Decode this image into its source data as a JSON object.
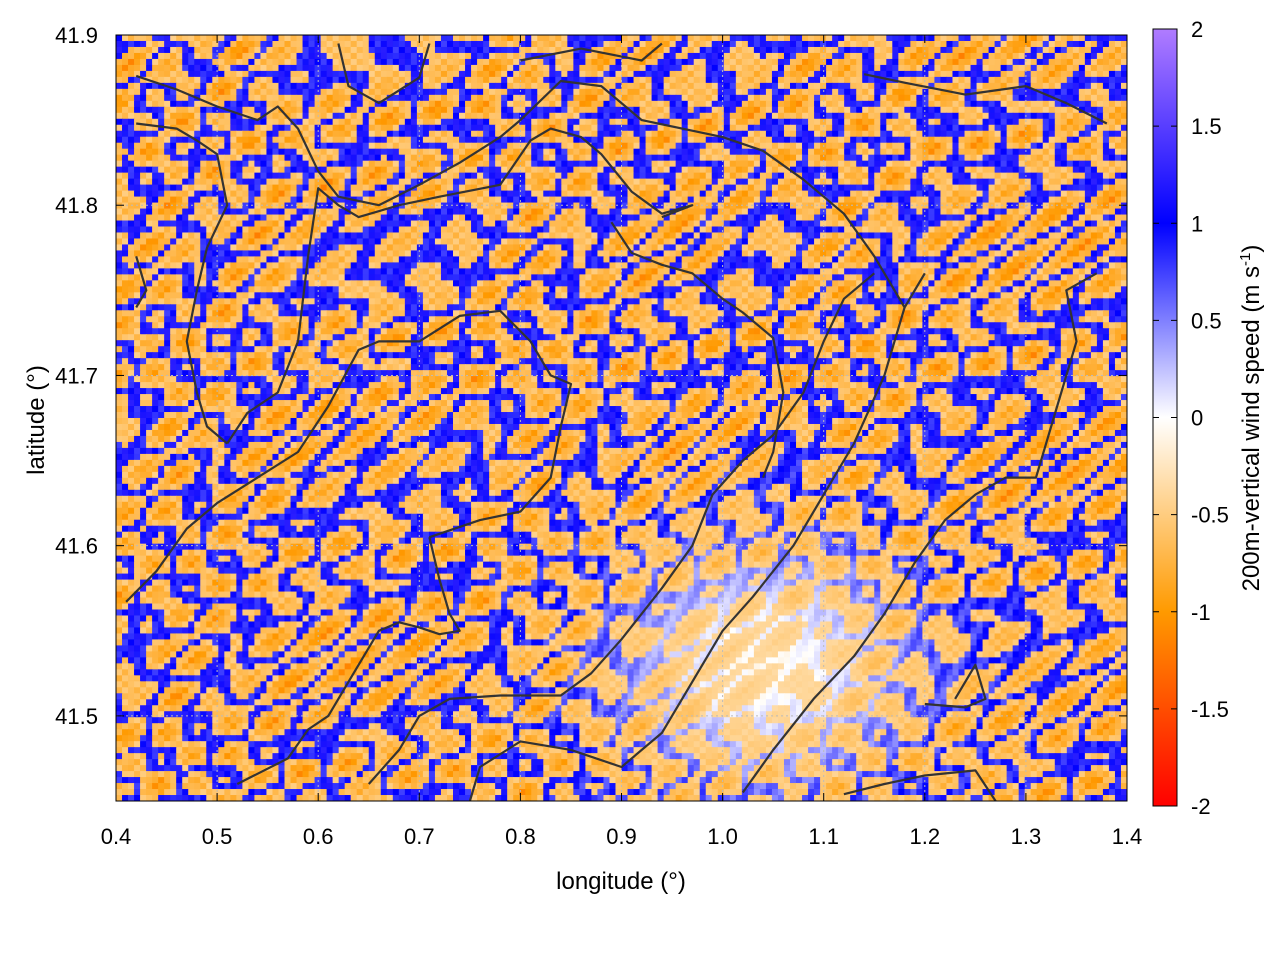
{
  "chart_data": {
    "type": "heatmap",
    "title": "",
    "xlabel": "longitude (°)",
    "ylabel": "latitude (°)",
    "colorbar_label": "200m-vertical wind speed (m s",
    "colorbar_label_sup": "-1",
    "colorbar_label_end": ")",
    "xlim": [
      0.4,
      1.4
    ],
    "ylim": [
      41.45,
      41.9
    ],
    "x_ticks": [
      0.4,
      0.5,
      0.6,
      0.7,
      0.8,
      0.9,
      1.0,
      1.1,
      1.2,
      1.3,
      1.4
    ],
    "x_tick_labels": [
      "0.4",
      "0.5",
      "0.6",
      "0.7",
      "0.8",
      "0.9",
      "1.0",
      "1.1",
      "1.2",
      "1.3",
      "1.4"
    ],
    "y_ticks": [
      41.5,
      41.6,
      41.7,
      41.8,
      41.9
    ],
    "y_tick_labels": [
      "41.5",
      "41.6",
      "41.7",
      "41.8",
      "41.9"
    ],
    "colorbar_range": [
      -2,
      2
    ],
    "colorbar_ticks": [
      2,
      1.5,
      1,
      0.5,
      0,
      -0.5,
      -1,
      -1.5,
      -2
    ],
    "colorbar_tick_labels": [
      "2",
      "1.5",
      "1",
      "0.5",
      "0",
      "-0.5",
      "-1",
      "-1.5",
      "-2"
    ],
    "colormap": [
      "#ff0000",
      "#ff9a00",
      "#ffffff",
      "#0000ff",
      "#b07cff"
    ],
    "grid": true,
    "boundaries": [
      [
        [
          0.42,
          41.876
        ],
        [
          0.46,
          41.868
        ],
        [
          0.5,
          41.858
        ],
        [
          0.54,
          41.85
        ],
        [
          0.56,
          41.858
        ],
        [
          0.58,
          41.845
        ],
        [
          0.6,
          41.82
        ],
        [
          0.62,
          41.805
        ],
        [
          0.66,
          41.8
        ],
        [
          0.7,
          41.812
        ],
        [
          0.74,
          41.825
        ],
        [
          0.78,
          41.84
        ],
        [
          0.8,
          41.85
        ],
        [
          0.84,
          41.873
        ],
        [
          0.88,
          41.87
        ],
        [
          0.92,
          41.85
        ],
        [
          0.96,
          41.845
        ],
        [
          1.0,
          41.84
        ],
        [
          1.04,
          41.832
        ],
        [
          1.08,
          41.815
        ],
        [
          1.12,
          41.795
        ],
        [
          1.15,
          41.77
        ],
        [
          1.18,
          41.74
        ]
      ],
      [
        [
          0.42,
          41.848
        ],
        [
          0.46,
          41.845
        ],
        [
          0.48,
          41.838
        ],
        [
          0.5,
          41.83
        ],
        [
          0.51,
          41.8
        ],
        [
          0.49,
          41.775
        ],
        [
          0.48,
          41.75
        ],
        [
          0.47,
          41.72
        ],
        [
          0.48,
          41.69
        ],
        [
          0.49,
          41.67
        ],
        [
          0.51,
          41.66
        ]
      ],
      [
        [
          0.51,
          41.66
        ],
        [
          0.53,
          41.678
        ],
        [
          0.56,
          41.69
        ],
        [
          0.58,
          41.72
        ],
        [
          0.59,
          41.77
        ],
        [
          0.6,
          41.81
        ],
        [
          0.62,
          41.8
        ],
        [
          0.64,
          41.793
        ],
        [
          0.68,
          41.8
        ],
        [
          0.72,
          41.805
        ],
        [
          0.78,
          41.812
        ],
        [
          0.81,
          41.838
        ],
        [
          0.83,
          41.845
        ],
        [
          0.86,
          41.84
        ],
        [
          0.88,
          41.83
        ],
        [
          0.91,
          41.808
        ],
        [
          0.94,
          41.795
        ],
        [
          0.97,
          41.8
        ],
        [
          0.94,
          41.793
        ]
      ],
      [
        [
          0.89,
          41.79
        ],
        [
          0.91,
          41.772
        ],
        [
          0.94,
          41.765
        ],
        [
          0.97,
          41.76
        ],
        [
          1.0,
          41.745
        ],
        [
          1.02,
          41.737
        ],
        [
          1.05,
          41.722
        ],
        [
          1.06,
          41.69
        ],
        [
          1.05,
          41.655
        ],
        [
          1.04,
          41.64
        ]
      ],
      [
        [
          0.41,
          41.567
        ],
        [
          0.44,
          41.585
        ],
        [
          0.47,
          41.61
        ],
        [
          0.5,
          41.625
        ],
        [
          0.54,
          41.64
        ],
        [
          0.58,
          41.655
        ],
        [
          0.61,
          41.682
        ],
        [
          0.64,
          41.715
        ],
        [
          0.66,
          41.72
        ],
        [
          0.7,
          41.72
        ],
        [
          0.74,
          41.735
        ],
        [
          0.78,
          41.738
        ],
        [
          0.81,
          41.72
        ],
        [
          0.83,
          41.7
        ],
        [
          0.85,
          41.695
        ],
        [
          0.84,
          41.67
        ],
        [
          0.83,
          41.64
        ],
        [
          0.8,
          41.62
        ],
        [
          0.76,
          41.615
        ],
        [
          0.71,
          41.605
        ]
      ],
      [
        [
          0.71,
          41.605
        ],
        [
          0.72,
          41.58
        ],
        [
          0.73,
          41.56
        ],
        [
          0.74,
          41.55
        ],
        [
          0.72,
          41.548
        ],
        [
          0.7,
          41.552
        ],
        [
          0.68,
          41.555
        ],
        [
          0.66,
          41.55
        ],
        [
          0.63,
          41.52
        ],
        [
          0.61,
          41.5
        ],
        [
          0.59,
          41.492
        ],
        [
          0.57,
          41.475
        ],
        [
          0.52,
          41.46
        ]
      ],
      [
        [
          0.65,
          41.46
        ],
        [
          0.68,
          41.48
        ],
        [
          0.7,
          41.5
        ],
        [
          0.73,
          41.51
        ],
        [
          0.78,
          41.512
        ],
        [
          0.84,
          41.512
        ],
        [
          0.87,
          41.525
        ],
        [
          0.9,
          41.545
        ],
        [
          0.94,
          41.575
        ],
        [
          0.97,
          41.6
        ],
        [
          0.99,
          41.63
        ],
        [
          1.02,
          41.65
        ],
        [
          1.05,
          41.665
        ],
        [
          1.08,
          41.69
        ],
        [
          1.1,
          41.72
        ],
        [
          1.12,
          41.745
        ],
        [
          1.15,
          41.76
        ]
      ],
      [
        [
          0.75,
          41.45
        ],
        [
          0.76,
          41.47
        ],
        [
          0.8,
          41.485
        ],
        [
          0.85,
          41.48
        ],
        [
          0.9,
          41.47
        ],
        [
          0.94,
          41.49
        ],
        [
          0.97,
          41.52
        ],
        [
          1.0,
          41.55
        ],
        [
          1.03,
          41.57
        ],
        [
          1.07,
          41.6
        ],
        [
          1.1,
          41.63
        ],
        [
          1.13,
          41.66
        ],
        [
          1.16,
          41.7
        ],
        [
          1.18,
          41.74
        ],
        [
          1.2,
          41.76
        ]
      ],
      [
        [
          1.02,
          41.455
        ],
        [
          1.05,
          41.48
        ],
        [
          1.09,
          41.51
        ],
        [
          1.13,
          41.535
        ],
        [
          1.16,
          41.56
        ],
        [
          1.19,
          41.59
        ],
        [
          1.22,
          41.615
        ],
        [
          1.25,
          41.63
        ],
        [
          1.28,
          41.64
        ],
        [
          1.31,
          41.64
        ],
        [
          1.33,
          41.68
        ],
        [
          1.35,
          41.72
        ],
        [
          1.34,
          41.75
        ],
        [
          1.37,
          41.76
        ]
      ],
      [
        [
          1.12,
          41.454
        ],
        [
          1.16,
          41.46
        ],
        [
          1.2,
          41.465
        ],
        [
          1.25,
          41.468
        ],
        [
          1.27,
          41.45
        ]
      ],
      [
        [
          1.2,
          41.507
        ],
        [
          1.24,
          41.505
        ],
        [
          1.26,
          41.51
        ],
        [
          1.25,
          41.53
        ],
        [
          1.23,
          41.51
        ]
      ],
      [
        [
          0.62,
          41.895
        ],
        [
          0.63,
          41.87
        ],
        [
          0.66,
          41.86
        ],
        [
          0.7,
          41.875
        ],
        [
          0.71,
          41.895
        ]
      ],
      [
        [
          0.8,
          41.885
        ],
        [
          0.86,
          41.892
        ],
        [
          0.92,
          41.885
        ],
        [
          0.94,
          41.895
        ]
      ],
      [
        [
          1.14,
          41.877
        ],
        [
          1.18,
          41.872
        ],
        [
          1.24,
          41.865
        ],
        [
          1.3,
          41.87
        ],
        [
          1.34,
          41.86
        ],
        [
          1.38,
          41.848
        ]
      ],
      [
        [
          0.42,
          41.77
        ],
        [
          0.43,
          41.75
        ],
        [
          0.42,
          41.74
        ]
      ]
    ]
  }
}
